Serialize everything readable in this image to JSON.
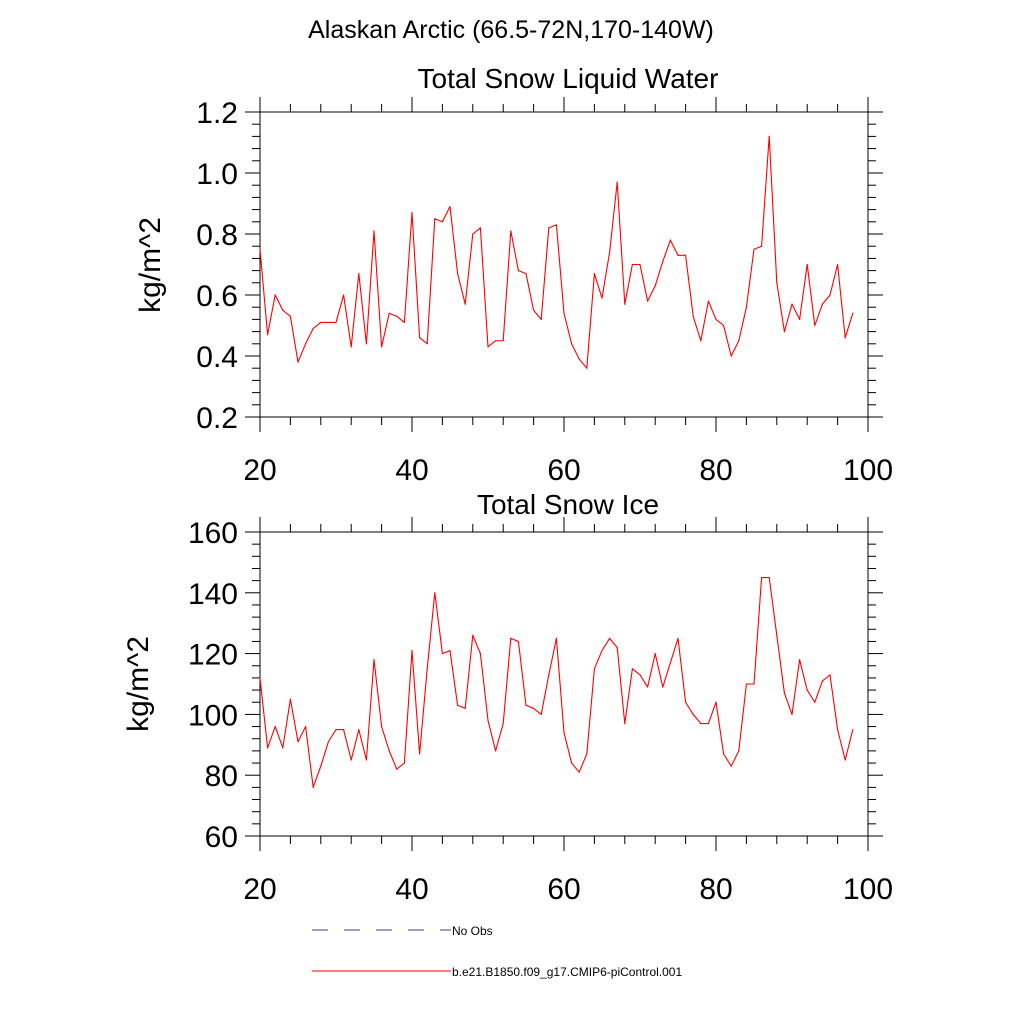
{
  "figure": {
    "title": "Alaskan Arctic (66.5-72N,170-140W)"
  },
  "colors": {
    "model_line": "#ff0000",
    "obs_line": "#3f3fa0",
    "axis": "#000000"
  },
  "chart_data": [
    {
      "type": "line",
      "title": "Total Snow Liquid Water",
      "xlabel": "",
      "ylabel": "kg/m^2",
      "xlim": [
        20,
        100
      ],
      "ylim": [
        0.2,
        1.2
      ],
      "xticks": [
        20,
        40,
        60,
        80,
        100
      ],
      "xtick_labels": [
        "20",
        "40",
        "60",
        "80",
        "100"
      ],
      "yticks": [
        0.2,
        0.4,
        0.6,
        0.8,
        1.0,
        1.2
      ],
      "ytick_labels": [
        "0.2",
        "0.4",
        "0.6",
        "0.8",
        "1.0",
        "1.2"
      ],
      "series": [
        {
          "name": "b.e21.B1850.f09_g17.CMIP6-piControl.001",
          "x": [
            20,
            21,
            22,
            23,
            24,
            25,
            26,
            27,
            28,
            29,
            30,
            31,
            32,
            33,
            34,
            35,
            36,
            37,
            38,
            39,
            40,
            41,
            42,
            43,
            44,
            45,
            46,
            47,
            48,
            49,
            50,
            51,
            52,
            53,
            54,
            55,
            56,
            57,
            58,
            59,
            60,
            61,
            62,
            63,
            64,
            65,
            66,
            67,
            68,
            69,
            70,
            71,
            72,
            73,
            74,
            75,
            76,
            77,
            78,
            79,
            80,
            81,
            82,
            83,
            84,
            85,
            86,
            87,
            88,
            89,
            90,
            91,
            92,
            93,
            94,
            95,
            96,
            97,
            98
          ],
          "values": [
            0.75,
            0.47,
            0.6,
            0.55,
            0.53,
            0.38,
            0.44,
            0.49,
            0.51,
            0.51,
            0.51,
            0.6,
            0.43,
            0.67,
            0.44,
            0.81,
            0.43,
            0.54,
            0.53,
            0.51,
            0.87,
            0.46,
            0.44,
            0.85,
            0.84,
            0.89,
            0.67,
            0.57,
            0.8,
            0.82,
            0.43,
            0.45,
            0.45,
            0.81,
            0.68,
            0.67,
            0.55,
            0.52,
            0.82,
            0.83,
            0.54,
            0.44,
            0.39,
            0.36,
            0.67,
            0.59,
            0.74,
            0.97,
            0.57,
            0.7,
            0.7,
            0.58,
            0.63,
            0.71,
            0.78,
            0.73,
            0.73,
            0.53,
            0.45,
            0.58,
            0.52,
            0.5,
            0.4,
            0.45,
            0.56,
            0.75,
            0.76,
            1.12,
            0.64,
            0.48,
            0.57,
            0.52,
            0.7,
            0.5,
            0.57,
            0.6,
            0.7,
            0.46,
            0.54
          ]
        }
      ]
    },
    {
      "type": "line",
      "title": "Total Snow Ice",
      "xlabel": "",
      "ylabel": "kg/m^2",
      "xlim": [
        20,
        100
      ],
      "ylim": [
        60,
        160
      ],
      "xticks": [
        20,
        40,
        60,
        80,
        100
      ],
      "xtick_labels": [
        "20",
        "40",
        "60",
        "80",
        "100"
      ],
      "yticks": [
        60,
        80,
        100,
        120,
        140,
        160
      ],
      "ytick_labels": [
        "60",
        "80",
        "100",
        "120",
        "140",
        "160"
      ],
      "series": [
        {
          "name": "b.e21.B1850.f09_g17.CMIP6-piControl.001",
          "x": [
            20,
            21,
            22,
            23,
            24,
            25,
            26,
            27,
            28,
            29,
            30,
            31,
            32,
            33,
            34,
            35,
            36,
            37,
            38,
            39,
            40,
            41,
            42,
            43,
            44,
            45,
            46,
            47,
            48,
            49,
            50,
            51,
            52,
            53,
            54,
            55,
            56,
            57,
            58,
            59,
            60,
            61,
            62,
            63,
            64,
            65,
            66,
            67,
            68,
            69,
            70,
            71,
            72,
            73,
            74,
            75,
            76,
            77,
            78,
            79,
            80,
            81,
            82,
            83,
            84,
            85,
            86,
            87,
            88,
            89,
            90,
            91,
            92,
            93,
            94,
            95,
            96,
            97,
            98
          ],
          "values": [
            112,
            89,
            96,
            89,
            105,
            91,
            96,
            76,
            83,
            91,
            95,
            95,
            85,
            95,
            85,
            118,
            96,
            88,
            82,
            84,
            121,
            87,
            115,
            140,
            120,
            121,
            103,
            102,
            126,
            120,
            98,
            88,
            97,
            125,
            124,
            103,
            102,
            100,
            113,
            125,
            94,
            84,
            81,
            87,
            115,
            121,
            125,
            122,
            97,
            115,
            113,
            109,
            120,
            109,
            117,
            125,
            104,
            100,
            97,
            97,
            104,
            87,
            83,
            88,
            110,
            110,
            145,
            145,
            126,
            107,
            100,
            118,
            108,
            104,
            111,
            113,
            95,
            85,
            95
          ]
        }
      ]
    }
  ],
  "legend": {
    "entries": [
      {
        "label": "No Obs",
        "style": "dashed"
      },
      {
        "label": "b.e21.B1850.f09_g17.CMIP6-piControl.001",
        "style": "solid"
      }
    ]
  }
}
